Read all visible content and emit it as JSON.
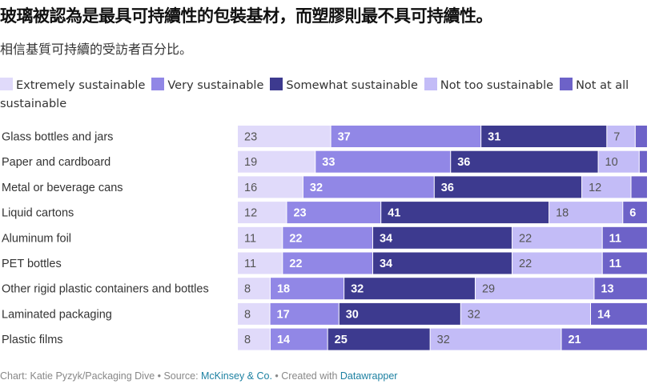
{
  "chart_data": {
    "type": "bar",
    "orientation": "horizontal",
    "stacked": true,
    "title": "玻璃被認為是最具可持續性的包裝基材，而塑膠則最不具可持續性。",
    "subtitle": "相信基質可持續的受訪者百分比。",
    "categories": [
      "Glass bottles and jars",
      "Paper and cardboard",
      "Metal or beverage cans",
      "Liquid cartons",
      "Aluminum foil",
      "PET bottles",
      "Other rigid plastic containers and bottles",
      "Laminated packaging",
      "Plastic films"
    ],
    "series": [
      {
        "name": "Extremely sustainable",
        "color": "#e0dafa",
        "label_color": "#555555",
        "values": [
          23,
          19,
          16,
          12,
          11,
          11,
          8,
          8,
          8
        ]
      },
      {
        "name": "Very sustainable",
        "color": "#9187e6",
        "label_color": "#ffffff",
        "values": [
          37,
          33,
          32,
          23,
          22,
          22,
          18,
          17,
          14
        ]
      },
      {
        "name": "Somewhat sustainable",
        "color": "#3d3a8f",
        "label_color": "#ffffff",
        "values": [
          31,
          36,
          36,
          41,
          34,
          34,
          32,
          30,
          25
        ]
      },
      {
        "name": "Not too sustainable",
        "color": "#c3bcf7",
        "label_color": "#555555",
        "values": [
          7,
          10,
          12,
          18,
          22,
          22,
          29,
          32,
          32
        ]
      },
      {
        "name": "Not at all sustainable",
        "color": "#6d62c8",
        "label_color": "#ffffff",
        "values": [
          3,
          2,
          4,
          6,
          11,
          11,
          13,
          14,
          21
        ],
        "value_labels_shown": [
          false,
          false,
          false,
          true,
          true,
          true,
          true,
          true,
          true
        ]
      }
    ],
    "xlim": [
      0,
      100
    ],
    "grid": false,
    "legend": "top"
  },
  "footer": {
    "credit": "Chart: Katie Pyzyk/Packaging Dive • Source: ",
    "source": "McKinsey & Co.",
    "created": " • Created with ",
    "tool": "Datawrapper"
  }
}
